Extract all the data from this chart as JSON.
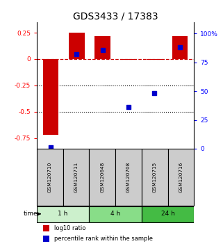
{
  "title": "GDS3433 / 17383",
  "samples": [
    "GSM120710",
    "GSM120711",
    "GSM120648",
    "GSM120708",
    "GSM120715",
    "GSM120716"
  ],
  "groups": [
    {
      "label": "1 h",
      "indices": [
        0,
        1
      ],
      "color": "#ccf0cc"
    },
    {
      "label": "4 h",
      "indices": [
        2,
        3
      ],
      "color": "#88dd88"
    },
    {
      "label": "24 h",
      "indices": [
        4,
        5
      ],
      "color": "#44bb44"
    }
  ],
  "log10_ratio": [
    -0.72,
    0.25,
    0.22,
    -0.01,
    -0.01,
    0.22
  ],
  "percentile_rank": [
    1.0,
    82.0,
    86.0,
    36.0,
    48.0,
    88.0
  ],
  "ylim_left": [
    -0.85,
    0.35
  ],
  "ylim_right": [
    0,
    110
  ],
  "yticks_left": [
    -0.75,
    -0.5,
    -0.25,
    0.0,
    0.25
  ],
  "ytick_labels_left": [
    "-0.75",
    "-0.5",
    "-0.25",
    "0",
    "0.25"
  ],
  "yticks_right": [
    0,
    25,
    50,
    75,
    100
  ],
  "ytick_labels_right": [
    "0",
    "25",
    "50",
    "75",
    "100%"
  ],
  "bar_color": "#cc0000",
  "dot_color": "#0000cc",
  "zero_line_color": "#cc0000",
  "dotted_line_color": "#000000",
  "sample_bg_color": "#cccccc",
  "sample_border_color": "#000000",
  "legend_bar_label": "log10 ratio",
  "legend_dot_label": "percentile rank within the sample",
  "time_label": "time"
}
